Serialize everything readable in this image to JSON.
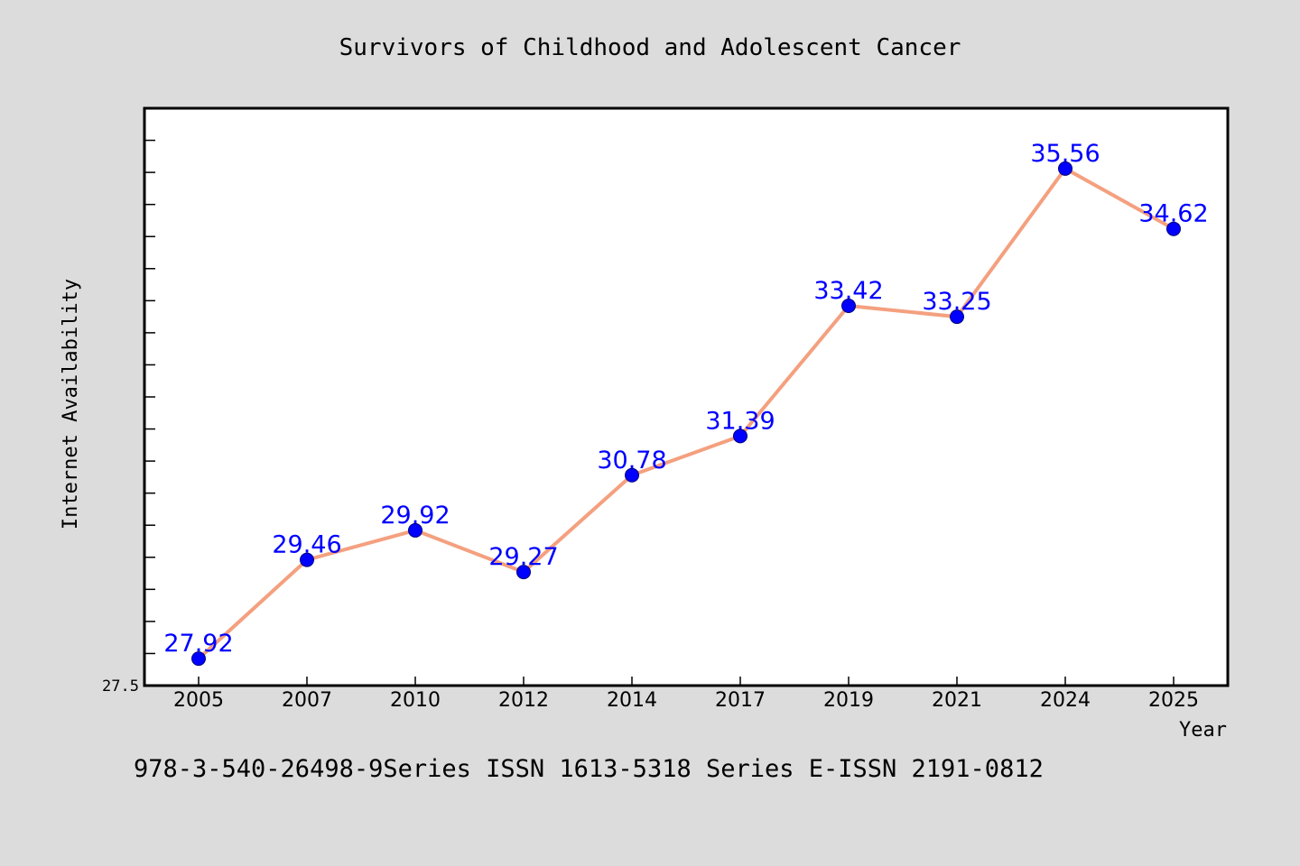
{
  "colors": {
    "background": "#dcdcdc",
    "plot_background": "#ffffff",
    "frame": "#000000",
    "line": "#f4a07f",
    "marker": "#0000ff",
    "data_label": "#0000ff",
    "text": "#000000"
  },
  "footer_text": "978-3-540-26498-9Series ISSN 1613-5318 Series E-ISSN 2191-0812",
  "chart_data": {
    "type": "line",
    "title": "Survivors of Childhood and Adolescent Cancer",
    "xlabel": "Year",
    "ylabel": "Internet Availability",
    "categories": [
      "2005",
      "2007",
      "2010",
      "2012",
      "2014",
      "2017",
      "2019",
      "2021",
      "2024",
      "2025"
    ],
    "series": [
      {
        "values": [
          27.92,
          29.46,
          29.92,
          29.27,
          30.78,
          31.39,
          33.42,
          33.25,
          35.56,
          34.62
        ],
        "labels": [
          "27.92",
          "29.46",
          "29.92",
          "29.27",
          "30.78",
          "31.39",
          "33.42",
          "33.25",
          "35.56",
          "34.62"
        ]
      }
    ],
    "ylim": [
      27.5,
      36.5
    ],
    "y_tick_labels": [
      "27.5"
    ],
    "y_minor_step": 0.5,
    "grid": false,
    "legend": "none"
  }
}
